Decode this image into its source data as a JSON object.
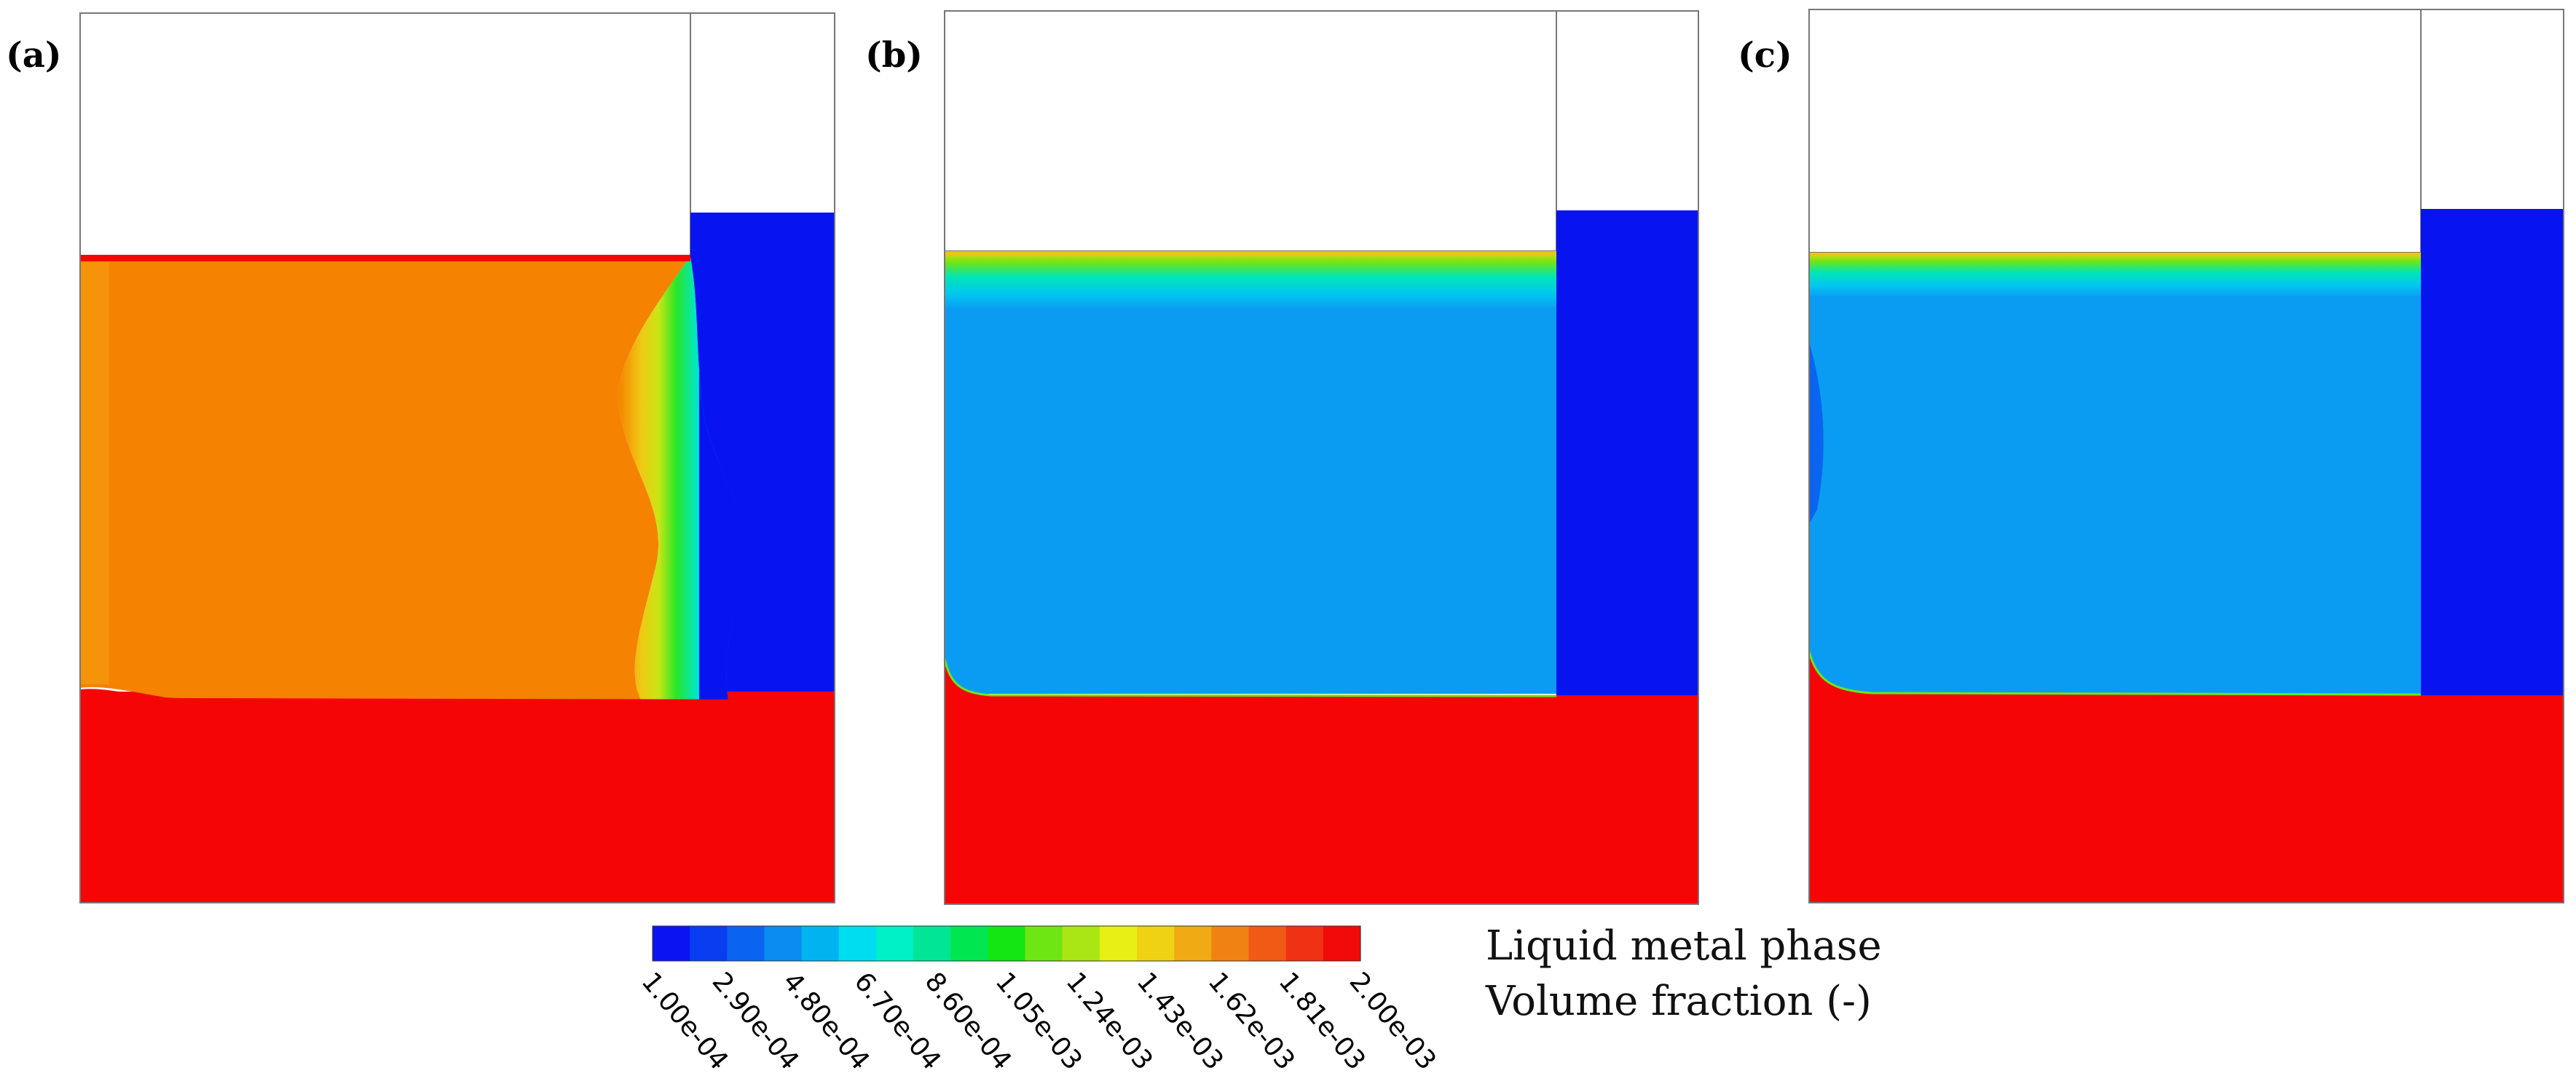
{
  "panels": [
    {
      "id": "a",
      "label": "(a)",
      "region_state": "orange-filled",
      "interface": "wavy-gradient"
    },
    {
      "id": "b",
      "label": "(b)",
      "region_state": "blue-filled",
      "interface": "thin-gradient-top"
    },
    {
      "id": "c",
      "label": "(c)",
      "region_state": "blue-filled",
      "interface": "thin-gradient-top"
    }
  ],
  "colorbar": {
    "colors": [
      "#0a14f0",
      "#0a3cf0",
      "#0a64f0",
      "#0a8cf0",
      "#00b4f0",
      "#00dcf0",
      "#00f0c8",
      "#00e696",
      "#00e650",
      "#14e614",
      "#6ee614",
      "#aae614",
      "#e6f014",
      "#f0d214",
      "#f0aa14",
      "#f08214",
      "#f05a14",
      "#f03214",
      "#f00a0a"
    ],
    "ticks": [
      "1.00e-04",
      "2.90e-04",
      "4.80e-04",
      "6.70e-04",
      "8.60e-04",
      "1.05e-03",
      "1.24e-03",
      "1.43e-03",
      "1.62e-03",
      "1.81e-03",
      "2.00e-03"
    ]
  },
  "legend": {
    "line1": "Liquid metal phase",
    "line2": "Volume fraction (-)"
  },
  "palette": {
    "red": "#f50505",
    "orange": "#f58200",
    "blue_dark": "#0714f0",
    "blue_light": "#0a9cf2",
    "blue_mid": "#08b8f0",
    "border": "#777777"
  }
}
